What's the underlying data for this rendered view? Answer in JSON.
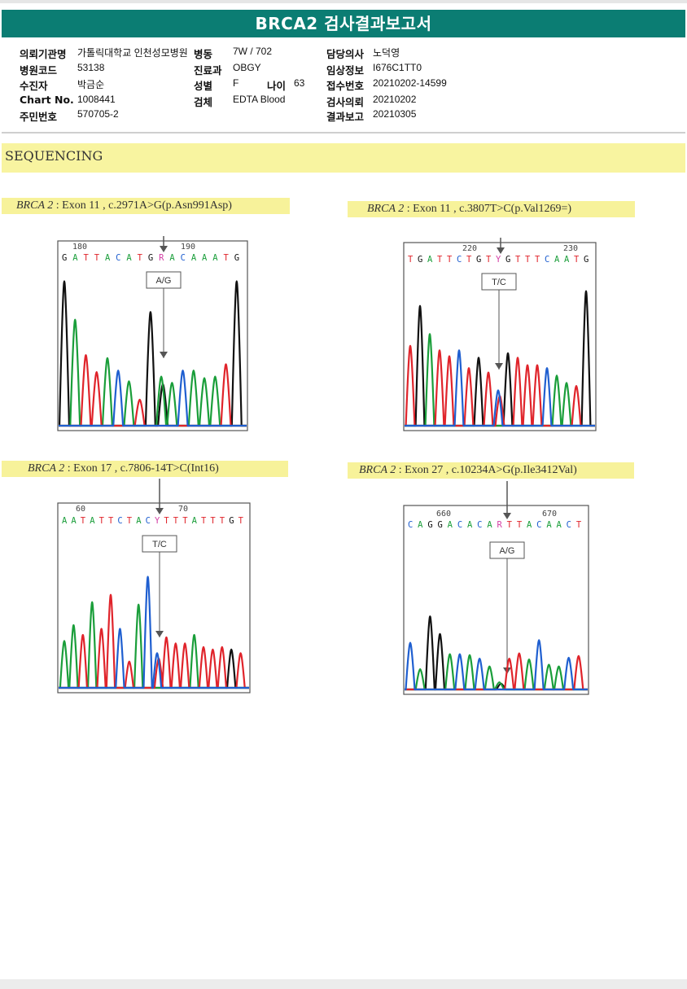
{
  "title": "BRCA2 검사결과보고서",
  "patient": {
    "labels": {
      "institution": "의뢰기관명",
      "hospital_code": "병원코드",
      "collector": "수진자",
      "chart_no": "Chart No.",
      "resident_no": "주민번호",
      "ward": "병동",
      "department": "진료과",
      "sex": "성별",
      "age": "나이",
      "specimen": "검체",
      "doctor": "담당의사",
      "clinical_info": "임상정보",
      "receipt_no": "접수번호",
      "request_date": "검사의뢰",
      "report_date": "결과보고"
    },
    "values": {
      "institution": "가톨릭대학교 인천성모병원",
      "hospital_code": "53138",
      "collector": "박금순",
      "chart_no": "1008441",
      "resident_no": "570705-2",
      "ward": "7W / 702",
      "department": "OBGY",
      "sex": "F",
      "age": "63",
      "specimen": "EDTA Blood",
      "doctor": "노덕영",
      "clinical_info": "I676C1TT0",
      "receipt_no": "20210202-14599",
      "request_date": "20210202",
      "report_date": "20210305"
    }
  },
  "section_title": "SEQUENCING",
  "panels": [
    {
      "gene": "BRCA 2",
      "detail": ": Exon 11 , c.2971A>G(p.Asn991Asp)",
      "call": "A/G",
      "pos_left": "180",
      "pos_right": "190",
      "sequence": "GATTACATGRACAAATG",
      "colors": {
        "G": "#111111",
        "A": "#1a9e3a",
        "T": "#e0242b",
        "C": "#1f5fd0",
        "R": "#d43ea5",
        "Y": "#d43ea5"
      }
    },
    {
      "gene": "BRCA 2",
      "detail": ": Exon 11 , c.3807T>C(p.Val1269=)",
      "call": "T/C",
      "pos_left": "220",
      "pos_right": "230",
      "sequence": "TGATTCTGTYGTTTCAATG",
      "colors": {
        "G": "#111111",
        "A": "#1a9e3a",
        "T": "#e0242b",
        "C": "#1f5fd0",
        "R": "#d43ea5",
        "Y": "#d43ea5"
      }
    },
    {
      "gene": "BRCA 2",
      "detail": ": Exon 17 , c.7806-14T>C(Int16)",
      "call": "T/C",
      "pos_left": "60",
      "pos_right": "70",
      "sequence": "AATATTCTACYTTTATTTGT",
      "colors": {
        "G": "#111111",
        "A": "#1a9e3a",
        "T": "#e0242b",
        "C": "#1f5fd0",
        "R": "#d43ea5",
        "Y": "#d43ea5"
      }
    },
    {
      "gene": "BRCA 2",
      "detail": ": Exon 27 , c.10234A>G(p.Ile3412Val)",
      "call": "A/G",
      "pos_left": "660",
      "pos_right": "670",
      "sequence": "CAGGACACARTTACAACT",
      "colors": {
        "G": "#111111",
        "A": "#1a9e3a",
        "T": "#e0242b",
        "C": "#1f5fd0",
        "R": "#d43ea5",
        "Y": "#d43ea5"
      }
    }
  ]
}
